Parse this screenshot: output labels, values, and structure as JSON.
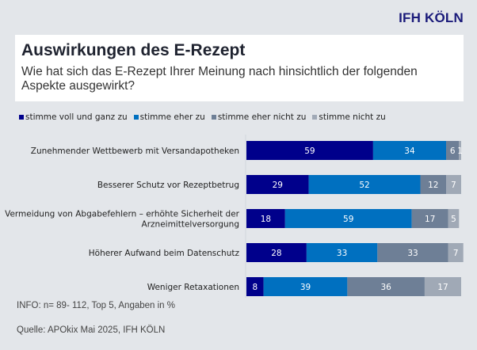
{
  "header": {
    "logo": "IFH KÖLN",
    "title": "Auswirkungen des E-Rezept",
    "subtitle": "Wie hat sich das E-Rezept Ihrer Meinung nach hinsichtlich der folgenden Aspekte ausgewirkt?"
  },
  "footer": {
    "info": "INFO: n= 89- 112, Top 5, Angaben in %",
    "source": "Quelle: APOkix Mai 2025, IFH KÖLN"
  },
  "chart_data": {
    "type": "bar",
    "orientation": "horizontal",
    "stacked": true,
    "title": "Auswirkungen des E-Rezept",
    "xlabel": "",
    "ylabel": "",
    "xlim": [
      0,
      100
    ],
    "legend_position": "top-left",
    "grid": false,
    "categories": [
      "Zunehmender Wettbewerb mit Versandapotheken",
      "Besserer Schutz vor Rezeptbetrug",
      "Vermeidung von Abgabefehlern – erhöhte Sicherheit der Arzneimittelversorgung",
      "Höherer Aufwand beim Datenschutz",
      "Weniger Retaxationen"
    ],
    "category_lines": [
      [
        "Zunehmender Wettbewerb mit Versandapotheken"
      ],
      [
        "Besserer Schutz vor Rezeptbetrug"
      ],
      [
        "Vermeidung von Abgabefehlern – erhöhte Sicherheit der",
        "Arzneimittelversorgung"
      ],
      [
        "Höherer Aufwand beim Datenschutz"
      ],
      [
        "Weniger Retaxationen"
      ]
    ],
    "series": [
      {
        "name": "stimme voll und ganz zu",
        "color": "#00008b",
        "values": [
          59,
          29,
          18,
          28,
          8
        ]
      },
      {
        "name": "stimme eher zu",
        "color": "#0070c0",
        "values": [
          34,
          52,
          59,
          33,
          39
        ]
      },
      {
        "name": "stimme eher nicht zu",
        "color": "#6e7f96",
        "values": [
          6,
          12,
          17,
          33,
          36
        ]
      },
      {
        "name": "stimme nicht zu",
        "color": "#a0a9b6",
        "values": [
          1,
          7,
          5,
          7,
          17
        ]
      }
    ]
  }
}
